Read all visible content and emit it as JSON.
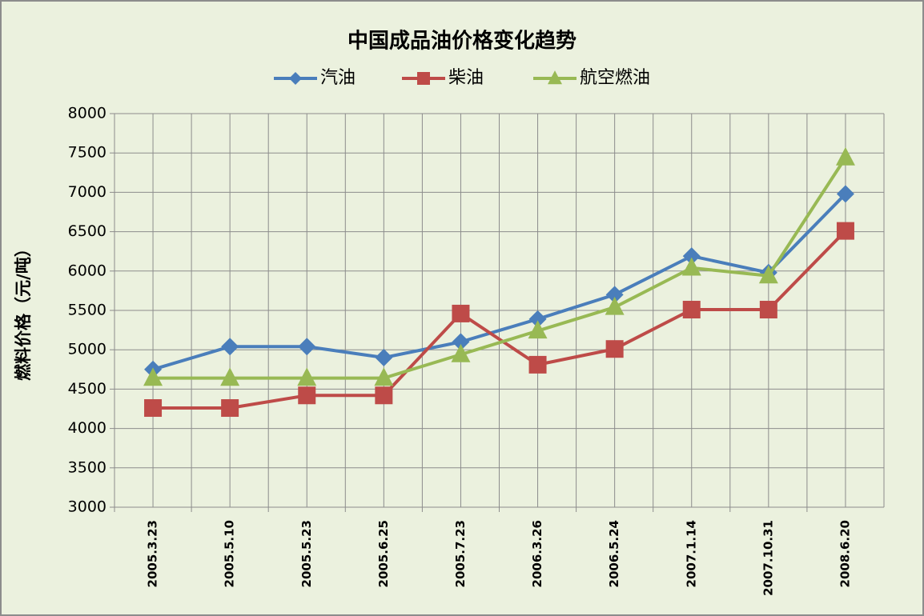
{
  "chart_data": {
    "type": "line",
    "title": "中国成品油价格变化趋势",
    "y_label": "燃料价格（元/吨）",
    "categories": [
      "2005.3.23",
      "2005.5.10",
      "2005.5.23",
      "2005.6.25",
      "2005.7.23",
      "2006.3.26",
      "2006.5.24",
      "2007.1.14",
      "2007.10.31",
      "2008.6.20"
    ],
    "series": [
      {
        "name": "汽油",
        "color": "#4a7ebb",
        "marker": "diamond",
        "values": [
          4750,
          5040,
          5040,
          4900,
          5100,
          5390,
          5700,
          6190,
          5980,
          6980
        ]
      },
      {
        "name": "柴油",
        "color": "#be4b48",
        "marker": "square",
        "values": [
          4260,
          4260,
          4420,
          4420,
          5460,
          4810,
          5010,
          5510,
          5510,
          6510
        ]
      },
      {
        "name": "航空燃油",
        "color": "#98b954",
        "marker": "triangle",
        "values": [
          4640,
          4640,
          4640,
          4640,
          4940,
          5240,
          5540,
          6040,
          5940,
          7440
        ]
      }
    ],
    "ylim": [
      3000,
      8000
    ],
    "yticks": [
      3000,
      3500,
      4000,
      4500,
      5000,
      5500,
      6000,
      6500,
      7000,
      7500,
      8000
    ],
    "grid": true,
    "legend": "top"
  }
}
